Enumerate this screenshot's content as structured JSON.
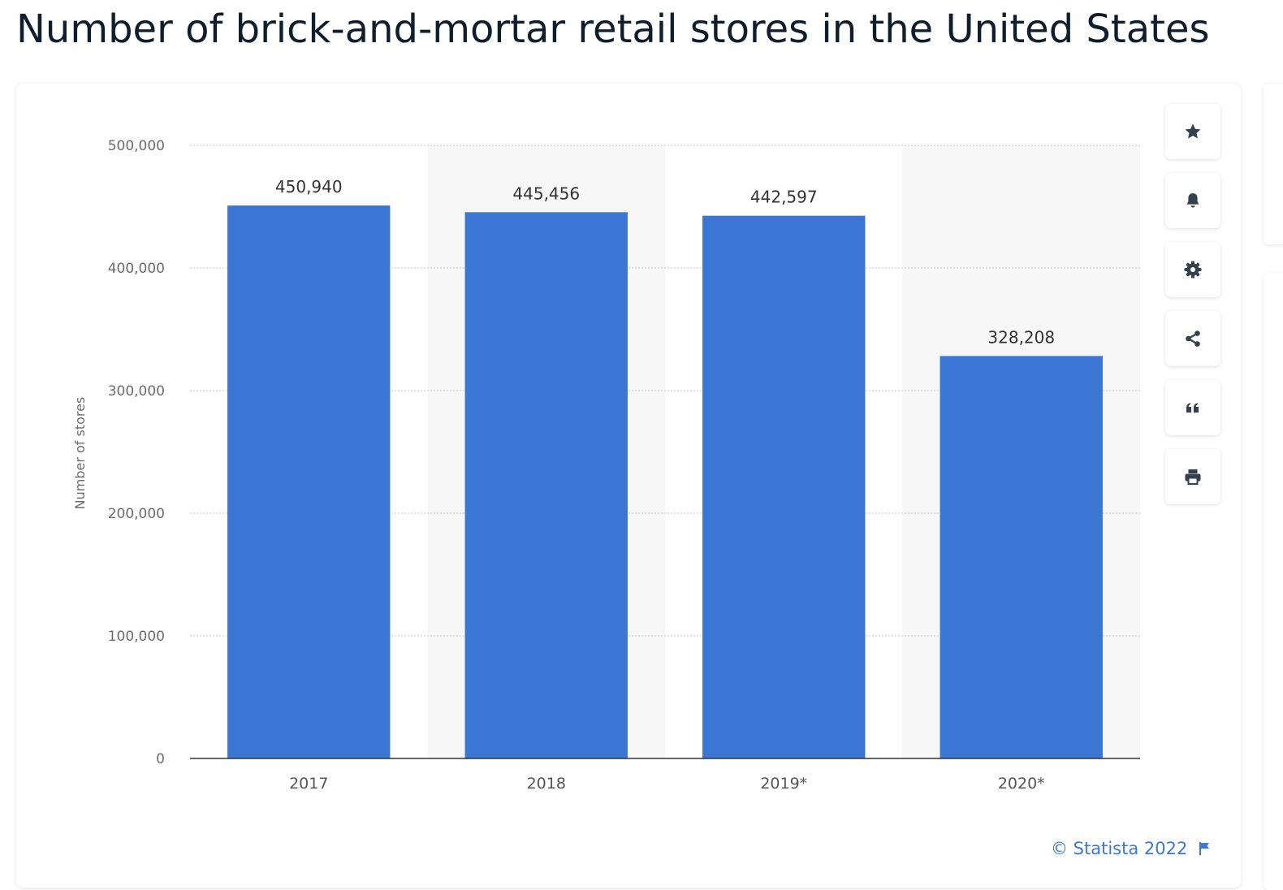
{
  "page": {
    "title": "Number of brick-and-mortar retail stores in the United States"
  },
  "toolbar": {
    "buttons": [
      {
        "icon": "star-icon"
      },
      {
        "icon": "bell-icon"
      },
      {
        "icon": "gear-icon"
      },
      {
        "icon": "share-icon"
      },
      {
        "icon": "quote-icon"
      },
      {
        "icon": "print-icon"
      }
    ]
  },
  "credit": {
    "text": "© Statista 2022",
    "icon": "flag-icon"
  },
  "colors": {
    "bar": "#3b76d4",
    "accent": "#3b7ad0",
    "title": "#0f1e2d",
    "band": "#f7f7f7"
  },
  "chart_data": {
    "type": "bar",
    "categories": [
      "2017",
      "2018",
      "2019*",
      "2020*"
    ],
    "values": [
      450940,
      445456,
      442597,
      328208
    ],
    "value_labels": [
      "450,940",
      "445,456",
      "442,597",
      "328,208"
    ],
    "ylabel": "Number of stores",
    "xlabel": "",
    "ylim": [
      0,
      500000
    ],
    "yticks": [
      0,
      100000,
      200000,
      300000,
      400000,
      500000
    ],
    "ytick_labels": [
      "0",
      "100,000",
      "200,000",
      "300,000",
      "400,000",
      "500,000"
    ],
    "grid": true,
    "grid_style": "dotted",
    "alternating_bands": true
  }
}
